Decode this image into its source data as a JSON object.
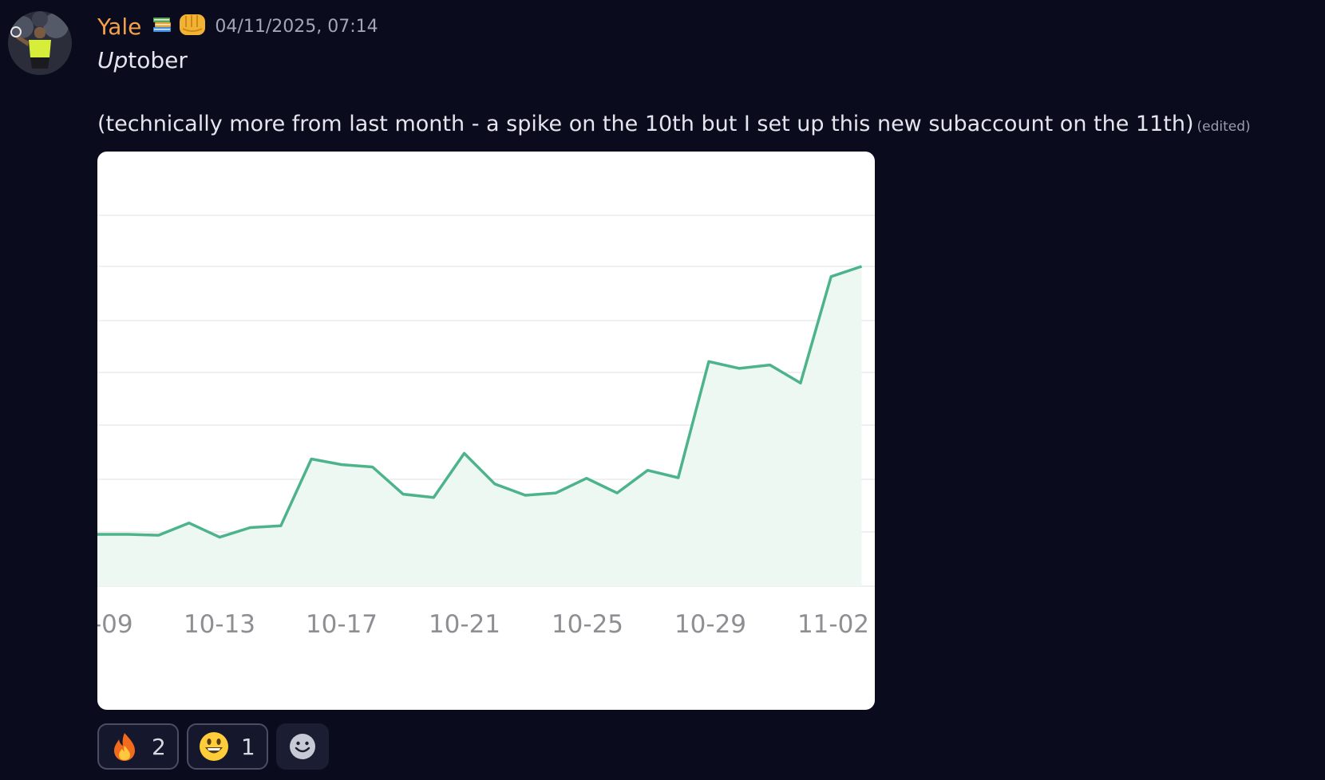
{
  "message": {
    "author": "Yale",
    "author_color": "#f4a14a",
    "badges": [
      "books-emoji",
      "fist-emoji"
    ],
    "timestamp": "04/11/2025, 07:14",
    "line1_italic": "Up",
    "line1_rest": "tober",
    "line2": "(technically more from last month - a spike on the 10th but I set up this new subaccount on the 11th)",
    "edited_label": "(edited)"
  },
  "chart_data": {
    "type": "area",
    "x_tick_labels": [
      "-09",
      "10-13",
      "10-17",
      "10-21",
      "10-25",
      "10-29",
      "11-02"
    ],
    "x": [
      "10-09",
      "10-10",
      "10-11",
      "10-12",
      "10-13",
      "10-14",
      "10-15",
      "10-16",
      "10-17",
      "10-18",
      "10-19",
      "10-20",
      "10-21",
      "10-22",
      "10-23",
      "10-24",
      "10-25",
      "10-26",
      "10-27",
      "10-28",
      "10-29",
      "10-30",
      "10-31",
      "11-01",
      "11-02",
      "11-03"
    ],
    "values": [
      0.95,
      0.95,
      0.87,
      1.95,
      0.7,
      1.55,
      1.7,
      7.6,
      7.1,
      6.9,
      4.5,
      4.2,
      8.1,
      5.4,
      4.4,
      4.6,
      5.9,
      4.6,
      6.6,
      5.95,
      16.2,
      15.6,
      15.9,
      14.3,
      23.7,
      24.6
    ],
    "y_gridlines": [
      0,
      1,
      2,
      3,
      4,
      5,
      6,
      7
    ],
    "ylim": [
      -1,
      33
    ],
    "grid": true,
    "line_color": "#4cb38a",
    "fill_color": "#eef8f3"
  },
  "reactions": [
    {
      "emoji": "fire-emoji",
      "count": "2"
    },
    {
      "emoji": "smiley-emoji",
      "count": "1"
    }
  ],
  "add_reaction": "add-reaction-icon"
}
